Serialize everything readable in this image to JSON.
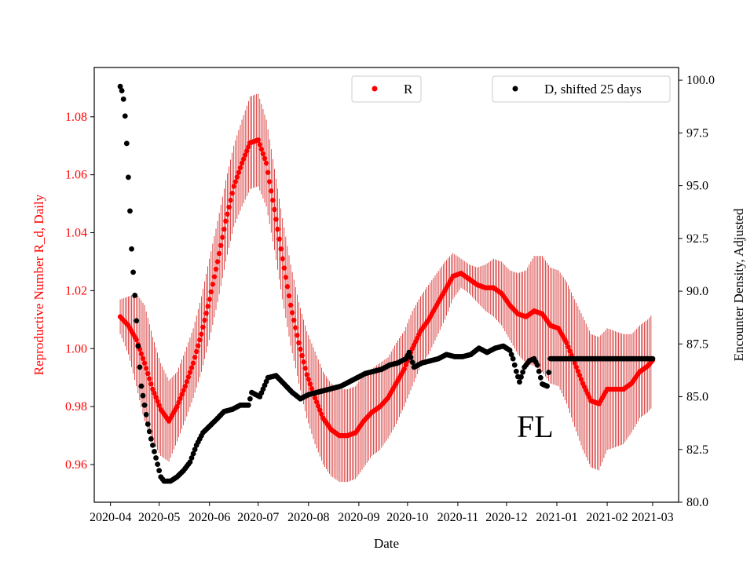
{
  "chart_data": {
    "type": "scatter",
    "xlabel": "Date",
    "ylabel_left": "Reproductive Number R_d, Daily",
    "ylabel_right": "Encounter Density, Adjusted",
    "annotation": "FL",
    "colors": {
      "R": "#ff0000",
      "R_err": "#cc0000",
      "D": "#000000",
      "left_axis_text": "#ff0000"
    },
    "x_domain": [
      "2020-03-22",
      "2021-03-17"
    ],
    "y_left_range": [
      0.947,
      1.097
    ],
    "y_right_range": [
      80.0,
      100.6
    ],
    "x_ticks": [
      {
        "date": "2020-04-01",
        "label": "2020-04"
      },
      {
        "date": "2020-05-01",
        "label": "2020-05"
      },
      {
        "date": "2020-06-01",
        "label": "2020-06"
      },
      {
        "date": "2020-07-01",
        "label": "2020-07"
      },
      {
        "date": "2020-08-01",
        "label": "2020-08"
      },
      {
        "date": "2020-09-01",
        "label": "2020-09"
      },
      {
        "date": "2020-10-01",
        "label": "2020-10"
      },
      {
        "date": "2020-11-01",
        "label": "2020-11"
      },
      {
        "date": "2020-12-01",
        "label": "2020-12"
      },
      {
        "date": "2021-01-01",
        "label": "2021-01"
      },
      {
        "date": "2021-02-01",
        "label": "2021-02"
      },
      {
        "date": "2021-03-01",
        "label": "2021-03"
      }
    ],
    "y_left_ticks": [
      0.96,
      0.98,
      1.0,
      1.02,
      1.04,
      1.06,
      1.08
    ],
    "y_left_tick_labels": [
      "0.96",
      "0.98",
      "1.00",
      "1.02",
      "1.04",
      "1.06",
      "1.08"
    ],
    "y_right_ticks": [
      80.0,
      82.5,
      85.0,
      87.5,
      90.0,
      92.5,
      95.0,
      97.5,
      100.0
    ],
    "y_right_tick_labels": [
      "80.0",
      "82.5",
      "85.0",
      "87.5",
      "90.0",
      "92.5",
      "95.0",
      "97.5",
      "100.0"
    ],
    "series": [
      {
        "name": "R",
        "axis": "left",
        "x": [
          "2020-04-07",
          "2020-04-12",
          "2020-04-17",
          "2020-04-22",
          "2020-04-27",
          "2020-05-02",
          "2020-05-07",
          "2020-05-12",
          "2020-05-17",
          "2020-05-22",
          "2020-05-27",
          "2020-06-01",
          "2020-06-06",
          "2020-06-11",
          "2020-06-16",
          "2020-06-21",
          "2020-06-26",
          "2020-07-01",
          "2020-07-06",
          "2020-07-11",
          "2020-07-16",
          "2020-07-21",
          "2020-07-26",
          "2020-07-31",
          "2020-08-05",
          "2020-08-10",
          "2020-08-15",
          "2020-08-20",
          "2020-08-25",
          "2020-08-30",
          "2020-09-04",
          "2020-09-09",
          "2020-09-14",
          "2020-09-19",
          "2020-09-24",
          "2020-09-29",
          "2020-10-04",
          "2020-10-09",
          "2020-10-14",
          "2020-10-19",
          "2020-10-24",
          "2020-10-29",
          "2020-11-03",
          "2020-11-08",
          "2020-11-13",
          "2020-11-18",
          "2020-11-23",
          "2020-11-28",
          "2020-12-03",
          "2020-12-08",
          "2020-12-13",
          "2020-12-18",
          "2020-12-23",
          "2020-12-28",
          "2021-01-02",
          "2021-01-07",
          "2021-01-12",
          "2021-01-17",
          "2021-01-22",
          "2021-01-27",
          "2021-02-01",
          "2021-02-06",
          "2021-02-11",
          "2021-02-16",
          "2021-02-21",
          "2021-02-26",
          "2021-03-01"
        ],
        "values": [
          1.011,
          1.008,
          1.003,
          0.995,
          0.986,
          0.979,
          0.975,
          0.98,
          0.987,
          0.995,
          1.005,
          1.017,
          1.03,
          1.044,
          1.056,
          1.064,
          1.071,
          1.072,
          1.064,
          1.048,
          1.031,
          1.015,
          1.002,
          0.991,
          0.983,
          0.976,
          0.972,
          0.97,
          0.97,
          0.971,
          0.975,
          0.978,
          0.98,
          0.983,
          0.988,
          0.993,
          1.0,
          1.006,
          1.01,
          1.015,
          1.02,
          1.025,
          1.026,
          1.024,
          1.022,
          1.021,
          1.021,
          1.019,
          1.015,
          1.012,
          1.011,
          1.013,
          1.012,
          1.008,
          1.007,
          1.002,
          0.995,
          0.988,
          0.982,
          0.981,
          0.986,
          0.986,
          0.986,
          0.988,
          0.992,
          0.994,
          0.996
        ],
        "errors": [
          0.006,
          0.01,
          0.016,
          0.02,
          0.018,
          0.016,
          0.014,
          0.012,
          0.012,
          0.012,
          0.013,
          0.014,
          0.014,
          0.014,
          0.014,
          0.015,
          0.016,
          0.016,
          0.015,
          0.014,
          0.014,
          0.014,
          0.014,
          0.015,
          0.016,
          0.016,
          0.016,
          0.016,
          0.016,
          0.016,
          0.016,
          0.015,
          0.015,
          0.014,
          0.014,
          0.013,
          0.013,
          0.012,
          0.012,
          0.011,
          0.01,
          0.008,
          0.005,
          0.005,
          0.006,
          0.008,
          0.01,
          0.011,
          0.012,
          0.014,
          0.016,
          0.019,
          0.02,
          0.02,
          0.02,
          0.021,
          0.022,
          0.023,
          0.023,
          0.023,
          0.021,
          0.02,
          0.019,
          0.017,
          0.016,
          0.016,
          0.016
        ]
      },
      {
        "name": "D, shifted 25 days",
        "axis": "right",
        "x": [
          "2020-04-07",
          "2020-04-08",
          "2020-04-09",
          "2020-04-10",
          "2020-04-11",
          "2020-04-12",
          "2020-04-13",
          "2020-04-14",
          "2020-04-15",
          "2020-04-16",
          "2020-04-17",
          "2020-04-18",
          "2020-04-19",
          "2020-04-20",
          "2020-04-22",
          "2020-04-24",
          "2020-04-26",
          "2020-04-28",
          "2020-04-30",
          "2020-05-02",
          "2020-05-04",
          "2020-05-08",
          "2020-05-12",
          "2020-05-16",
          "2020-05-20",
          "2020-05-24",
          "2020-05-28",
          "2020-06-01",
          "2020-06-05",
          "2020-06-10",
          "2020-06-15",
          "2020-06-20",
          "2020-06-25",
          "2020-06-27",
          "2020-07-02",
          "2020-07-07",
          "2020-07-12",
          "2020-07-17",
          "2020-07-22",
          "2020-07-27",
          "2020-08-01",
          "2020-08-06",
          "2020-08-11",
          "2020-08-16",
          "2020-08-21",
          "2020-08-26",
          "2020-08-31",
          "2020-09-05",
          "2020-09-10",
          "2020-09-15",
          "2020-09-20",
          "2020-09-25",
          "2020-09-30",
          "2020-10-02",
          "2020-10-05",
          "2020-10-10",
          "2020-10-15",
          "2020-10-20",
          "2020-10-25",
          "2020-10-30",
          "2020-11-04",
          "2020-11-09",
          "2020-11-14",
          "2020-11-19",
          "2020-11-24",
          "2020-11-29",
          "2020-12-03",
          "2020-12-05",
          "2020-12-07",
          "2020-12-09",
          "2020-12-12",
          "2020-12-15",
          "2020-12-18",
          "2020-12-20",
          "2020-12-23",
          "2020-12-26",
          "2020-12-28",
          "2020-12-31",
          "2021-01-05",
          "2021-01-10",
          "2021-01-15",
          "2021-01-20",
          "2021-01-25",
          "2021-01-30",
          "2021-02-04",
          "2021-02-09",
          "2021-02-14",
          "2021-02-19",
          "2021-02-24",
          "2021-03-01"
        ],
        "values": [
          99.7,
          99.5,
          99.1,
          98.3,
          97.0,
          95.4,
          93.8,
          92.0,
          90.9,
          89.8,
          88.6,
          87.4,
          86.4,
          85.5,
          84.6,
          83.7,
          83.0,
          82.4,
          81.8,
          81.2,
          81.0,
          81.0,
          81.2,
          81.5,
          81.9,
          82.7,
          83.3,
          83.6,
          83.9,
          84.3,
          84.4,
          84.6,
          84.6,
          85.2,
          85.0,
          85.9,
          86.0,
          85.6,
          85.2,
          84.9,
          85.1,
          85.2,
          85.3,
          85.4,
          85.5,
          85.7,
          85.9,
          86.1,
          86.2,
          86.3,
          86.5,
          86.6,
          86.8,
          87.1,
          86.4,
          86.6,
          86.7,
          86.8,
          87.0,
          86.9,
          86.9,
          87.0,
          87.3,
          87.1,
          87.3,
          87.4,
          87.2,
          86.8,
          86.2,
          85.7,
          86.4,
          86.7,
          86.8,
          86.5,
          85.6,
          85.5,
          86.8,
          86.8,
          86.8,
          86.8,
          86.8,
          86.8,
          86.8,
          86.8,
          86.8,
          86.8,
          86.8,
          86.8,
          86.8,
          86.8
        ]
      }
    ],
    "legend": [
      {
        "label": "R",
        "position": "top-center"
      },
      {
        "label": "D, shifted 25 days",
        "position": "top-right"
      }
    ]
  }
}
